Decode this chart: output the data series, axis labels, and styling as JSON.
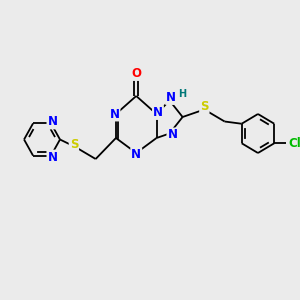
{
  "bg_color": "#ebebeb",
  "bond_color": "#000000",
  "atom_colors": {
    "N": "#0000ff",
    "O": "#ff0000",
    "S": "#cccc00",
    "Cl": "#00bb00",
    "H": "#007777",
    "C": "#000000"
  },
  "font_size_atoms": 8.5,
  "font_size_h": 7.0,
  "lw": 1.3
}
